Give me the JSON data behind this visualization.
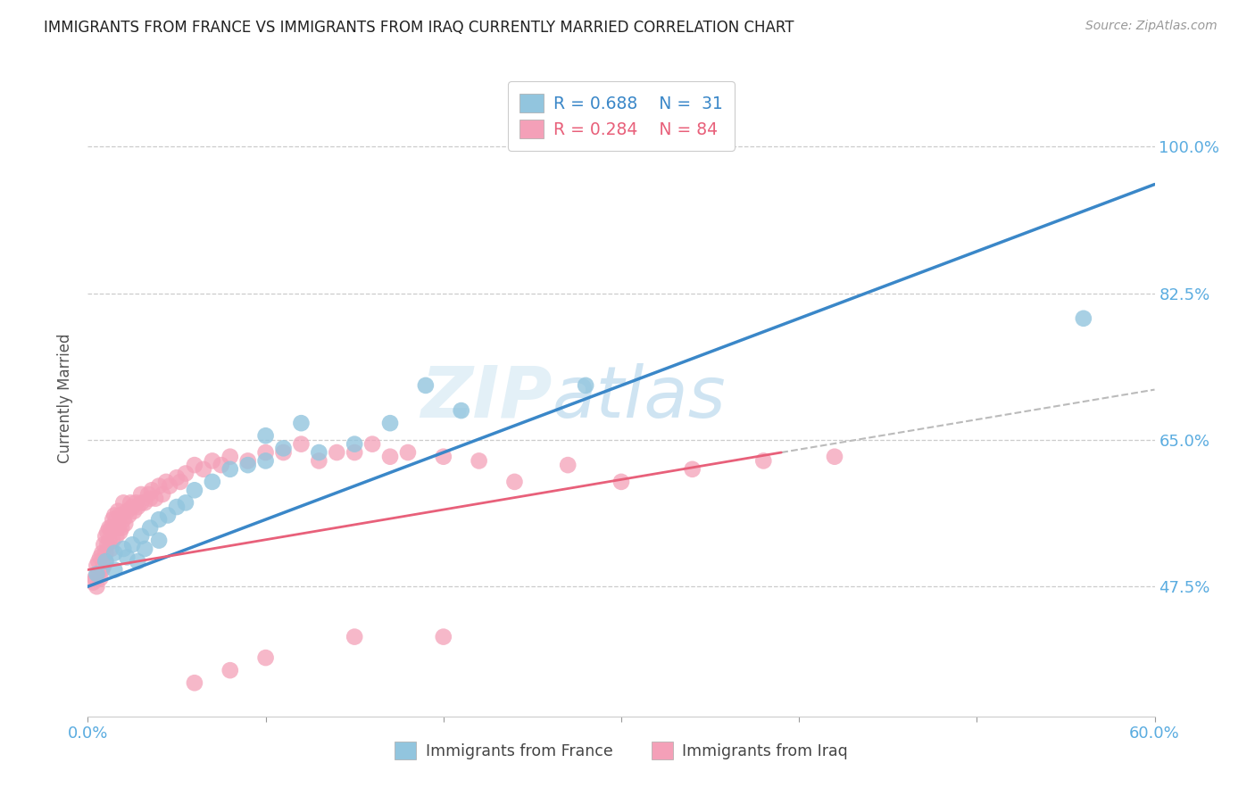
{
  "title": "IMMIGRANTS FROM FRANCE VS IMMIGRANTS FROM IRAQ CURRENTLY MARRIED CORRELATION CHART",
  "source": "Source: ZipAtlas.com",
  "ylabel": "Currently Married",
  "ytick_labels": [
    "100.0%",
    "82.5%",
    "65.0%",
    "47.5%"
  ],
  "ytick_values": [
    1.0,
    0.825,
    0.65,
    0.475
  ],
  "xlim": [
    0.0,
    0.6
  ],
  "ylim": [
    0.32,
    1.08
  ],
  "france_color": "#92c5de",
  "iraq_color": "#f4a0b8",
  "france_line_color": "#3a87c8",
  "iraq_line_color": "#e8607a",
  "gray_dash_color": "#bbbbbb",
  "legend_r_france": "R = 0.688",
  "legend_n_france": "N =  31",
  "legend_r_iraq": "R = 0.284",
  "legend_n_iraq": "N = 84",
  "france_line_x0": 0.0,
  "france_line_y0": 0.475,
  "france_line_x1": 0.6,
  "france_line_y1": 0.955,
  "iraq_line_x0": 0.0,
  "iraq_line_y0": 0.495,
  "iraq_line_x1": 0.39,
  "iraq_line_y1": 0.635,
  "gray_line_x0": 0.39,
  "gray_line_y0": 0.635,
  "gray_line_x1": 0.6,
  "gray_line_y1": 0.71,
  "france_x": [
    0.005,
    0.01,
    0.015,
    0.015,
    0.02,
    0.022,
    0.025,
    0.028,
    0.03,
    0.032,
    0.035,
    0.04,
    0.04,
    0.045,
    0.05,
    0.055,
    0.06,
    0.07,
    0.08,
    0.09,
    0.1,
    0.1,
    0.11,
    0.12,
    0.13,
    0.15,
    0.17,
    0.19,
    0.21,
    0.28,
    0.56
  ],
  "france_y": [
    0.49,
    0.505,
    0.515,
    0.495,
    0.52,
    0.51,
    0.525,
    0.505,
    0.535,
    0.52,
    0.545,
    0.555,
    0.53,
    0.56,
    0.57,
    0.575,
    0.59,
    0.6,
    0.615,
    0.62,
    0.625,
    0.655,
    0.64,
    0.67,
    0.635,
    0.645,
    0.67,
    0.715,
    0.685,
    0.715,
    0.795
  ],
  "iraq_x": [
    0.003,
    0.004,
    0.005,
    0.005,
    0.006,
    0.006,
    0.007,
    0.007,
    0.008,
    0.008,
    0.009,
    0.009,
    0.01,
    0.01,
    0.01,
    0.011,
    0.011,
    0.012,
    0.012,
    0.013,
    0.013,
    0.014,
    0.014,
    0.015,
    0.015,
    0.016,
    0.016,
    0.017,
    0.017,
    0.018,
    0.018,
    0.019,
    0.02,
    0.02,
    0.021,
    0.022,
    0.023,
    0.024,
    0.025,
    0.026,
    0.027,
    0.028,
    0.03,
    0.03,
    0.032,
    0.034,
    0.035,
    0.036,
    0.038,
    0.04,
    0.042,
    0.044,
    0.046,
    0.05,
    0.052,
    0.055,
    0.06,
    0.065,
    0.07,
    0.075,
    0.08,
    0.09,
    0.1,
    0.11,
    0.12,
    0.13,
    0.14,
    0.15,
    0.16,
    0.17,
    0.18,
    0.2,
    0.22,
    0.24,
    0.27,
    0.3,
    0.34,
    0.38,
    0.42,
    0.15,
    0.2,
    0.1,
    0.08,
    0.06
  ],
  "iraq_y": [
    0.48,
    0.485,
    0.475,
    0.5,
    0.49,
    0.505,
    0.485,
    0.51,
    0.495,
    0.515,
    0.5,
    0.525,
    0.505,
    0.535,
    0.515,
    0.54,
    0.525,
    0.545,
    0.53,
    0.545,
    0.52,
    0.555,
    0.53,
    0.545,
    0.56,
    0.535,
    0.555,
    0.545,
    0.565,
    0.54,
    0.56,
    0.545,
    0.555,
    0.575,
    0.55,
    0.565,
    0.56,
    0.575,
    0.57,
    0.565,
    0.575,
    0.57,
    0.575,
    0.585,
    0.575,
    0.585,
    0.58,
    0.59,
    0.58,
    0.595,
    0.585,
    0.6,
    0.595,
    0.605,
    0.6,
    0.61,
    0.62,
    0.615,
    0.625,
    0.62,
    0.63,
    0.625,
    0.635,
    0.635,
    0.645,
    0.625,
    0.635,
    0.635,
    0.645,
    0.63,
    0.635,
    0.63,
    0.625,
    0.6,
    0.62,
    0.6,
    0.615,
    0.625,
    0.63,
    0.415,
    0.415,
    0.39,
    0.375,
    0.36
  ]
}
